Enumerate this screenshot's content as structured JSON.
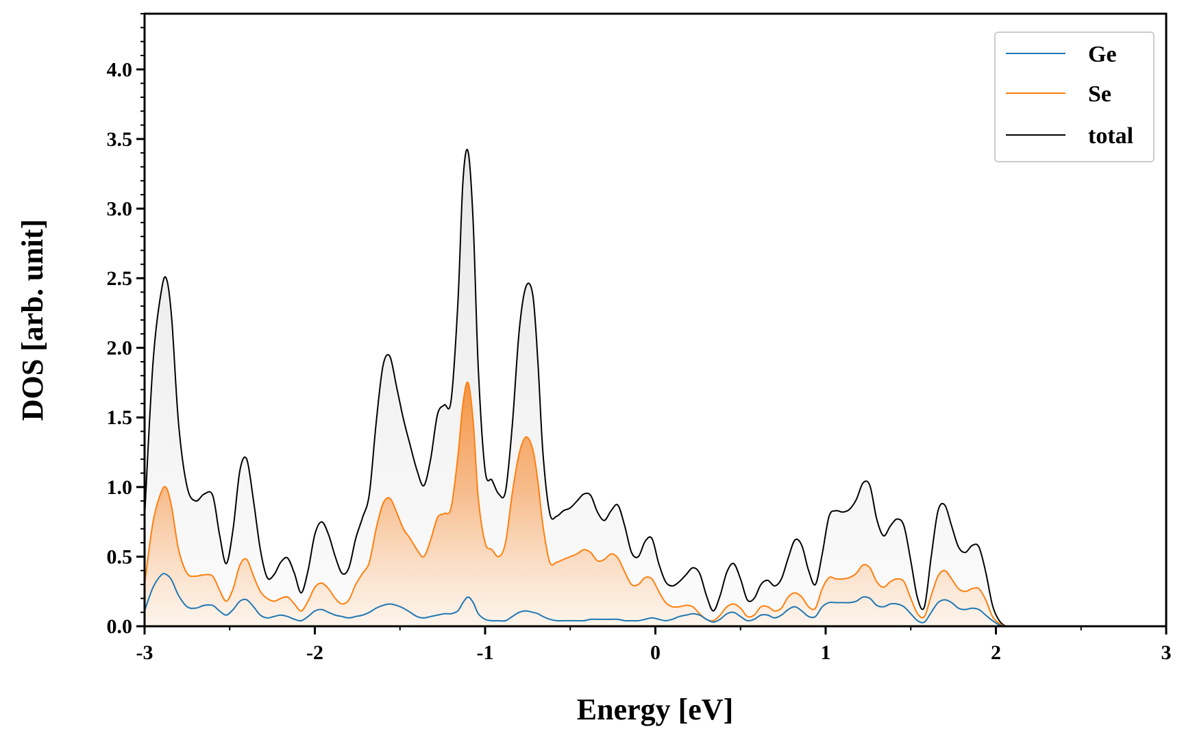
{
  "chart_data": {
    "type": "line",
    "title": "",
    "xlabel": "Energy [eV]",
    "ylabel": "DOS [arb. unit]",
    "xlim": [
      -3,
      3
    ],
    "ylim": [
      0,
      4.4
    ],
    "xticks": [
      -3,
      -2,
      -1,
      0,
      1,
      2,
      3
    ],
    "xtick_labels": [
      "-3",
      "-2",
      "-1",
      "0",
      "1",
      "2",
      "3"
    ],
    "yticks": [
      0,
      0.5,
      1.0,
      1.5,
      2.0,
      2.5,
      3.0,
      3.5,
      4.0
    ],
    "ytick_labels": [
      "0.0",
      "0.5",
      "1.0",
      "1.5",
      "2.0",
      "2.5",
      "3.0",
      "3.5",
      "4.0"
    ],
    "grid": false,
    "legend_position": "top-right",
    "x": [
      -3.0,
      -2.95,
      -2.9,
      -2.87,
      -2.84,
      -2.8,
      -2.75,
      -2.7,
      -2.65,
      -2.6,
      -2.56,
      -2.52,
      -2.48,
      -2.44,
      -2.4,
      -2.36,
      -2.32,
      -2.28,
      -2.24,
      -2.2,
      -2.16,
      -2.12,
      -2.08,
      -2.04,
      -2.0,
      -1.96,
      -1.92,
      -1.88,
      -1.84,
      -1.8,
      -1.76,
      -1.72,
      -1.68,
      -1.64,
      -1.6,
      -1.56,
      -1.52,
      -1.48,
      -1.44,
      -1.4,
      -1.36,
      -1.32,
      -1.28,
      -1.24,
      -1.2,
      -1.16,
      -1.13,
      -1.1,
      -1.07,
      -1.04,
      -1.0,
      -0.96,
      -0.92,
      -0.88,
      -0.84,
      -0.8,
      -0.76,
      -0.72,
      -0.69,
      -0.66,
      -0.62,
      -0.58,
      -0.54,
      -0.5,
      -0.46,
      -0.42,
      -0.38,
      -0.34,
      -0.3,
      -0.26,
      -0.22,
      -0.18,
      -0.14,
      -0.1,
      -0.06,
      -0.02,
      0.02,
      0.06,
      0.1,
      0.14,
      0.18,
      0.22,
      0.26,
      0.3,
      0.34,
      0.38,
      0.42,
      0.46,
      0.5,
      0.54,
      0.58,
      0.62,
      0.66,
      0.7,
      0.74,
      0.78,
      0.82,
      0.86,
      0.9,
      0.94,
      0.98,
      1.02,
      1.06,
      1.1,
      1.14,
      1.18,
      1.22,
      1.26,
      1.3,
      1.34,
      1.38,
      1.42,
      1.46,
      1.5,
      1.54,
      1.58,
      1.62,
      1.66,
      1.7,
      1.74,
      1.78,
      1.82,
      1.86,
      1.9,
      1.94,
      1.98,
      2.02,
      2.06,
      2.1,
      2.2,
      2.5,
      3.0
    ],
    "series": [
      {
        "name": "Ge",
        "color": "#1f77b4",
        "values": [
          0.11,
          0.28,
          0.37,
          0.37,
          0.33,
          0.22,
          0.14,
          0.13,
          0.15,
          0.15,
          0.11,
          0.08,
          0.12,
          0.18,
          0.19,
          0.14,
          0.08,
          0.06,
          0.07,
          0.08,
          0.07,
          0.05,
          0.04,
          0.07,
          0.11,
          0.12,
          0.1,
          0.08,
          0.07,
          0.06,
          0.07,
          0.08,
          0.1,
          0.13,
          0.15,
          0.16,
          0.15,
          0.13,
          0.1,
          0.07,
          0.06,
          0.07,
          0.08,
          0.09,
          0.09,
          0.11,
          0.17,
          0.21,
          0.17,
          0.09,
          0.05,
          0.04,
          0.04,
          0.04,
          0.07,
          0.1,
          0.11,
          0.1,
          0.09,
          0.07,
          0.05,
          0.04,
          0.04,
          0.04,
          0.04,
          0.04,
          0.05,
          0.05,
          0.05,
          0.05,
          0.05,
          0.04,
          0.04,
          0.04,
          0.05,
          0.06,
          0.05,
          0.04,
          0.05,
          0.07,
          0.08,
          0.09,
          0.08,
          0.05,
          0.03,
          0.05,
          0.09,
          0.1,
          0.07,
          0.04,
          0.05,
          0.08,
          0.08,
          0.06,
          0.08,
          0.12,
          0.14,
          0.11,
          0.07,
          0.07,
          0.14,
          0.17,
          0.17,
          0.17,
          0.17,
          0.18,
          0.21,
          0.2,
          0.15,
          0.14,
          0.16,
          0.16,
          0.14,
          0.09,
          0.04,
          0.03,
          0.1,
          0.17,
          0.19,
          0.17,
          0.13,
          0.12,
          0.13,
          0.12,
          0.08,
          0.04,
          0.01,
          0.0,
          0.0,
          0.0,
          0.0,
          0.0
        ]
      },
      {
        "name": "Se",
        "color": "#ff7f0e",
        "values": [
          0.3,
          0.75,
          0.97,
          0.99,
          0.85,
          0.55,
          0.38,
          0.36,
          0.37,
          0.36,
          0.26,
          0.18,
          0.27,
          0.44,
          0.48,
          0.36,
          0.25,
          0.2,
          0.18,
          0.2,
          0.21,
          0.16,
          0.11,
          0.18,
          0.28,
          0.31,
          0.27,
          0.2,
          0.16,
          0.19,
          0.3,
          0.38,
          0.46,
          0.7,
          0.88,
          0.92,
          0.82,
          0.7,
          0.63,
          0.55,
          0.5,
          0.62,
          0.78,
          0.81,
          0.85,
          1.22,
          1.6,
          1.75,
          1.47,
          0.92,
          0.6,
          0.55,
          0.5,
          0.6,
          0.96,
          1.24,
          1.36,
          1.27,
          1.04,
          0.72,
          0.46,
          0.46,
          0.48,
          0.5,
          0.52,
          0.55,
          0.53,
          0.47,
          0.48,
          0.52,
          0.49,
          0.39,
          0.3,
          0.3,
          0.35,
          0.34,
          0.25,
          0.17,
          0.14,
          0.14,
          0.15,
          0.14,
          0.09,
          0.05,
          0.04,
          0.08,
          0.14,
          0.16,
          0.13,
          0.07,
          0.08,
          0.14,
          0.14,
          0.11,
          0.13,
          0.21,
          0.24,
          0.21,
          0.14,
          0.13,
          0.27,
          0.35,
          0.34,
          0.34,
          0.35,
          0.38,
          0.44,
          0.42,
          0.32,
          0.28,
          0.32,
          0.34,
          0.32,
          0.2,
          0.09,
          0.07,
          0.22,
          0.36,
          0.4,
          0.34,
          0.27,
          0.25,
          0.27,
          0.27,
          0.19,
          0.07,
          0.02,
          0.0,
          0.0,
          0.0,
          0.0,
          0.0
        ]
      },
      {
        "name": "total",
        "color": "#000000",
        "values": [
          0.78,
          1.9,
          2.42,
          2.49,
          2.2,
          1.45,
          1.0,
          0.9,
          0.95,
          0.94,
          0.66,
          0.45,
          0.7,
          1.12,
          1.2,
          0.9,
          0.55,
          0.35,
          0.37,
          0.46,
          0.49,
          0.38,
          0.24,
          0.4,
          0.66,
          0.75,
          0.66,
          0.5,
          0.38,
          0.42,
          0.63,
          0.78,
          0.95,
          1.46,
          1.87,
          1.94,
          1.72,
          1.49,
          1.3,
          1.12,
          1.01,
          1.2,
          1.52,
          1.59,
          1.62,
          2.32,
          3.2,
          3.41,
          2.9,
          1.85,
          1.12,
          1.05,
          0.95,
          0.97,
          1.45,
          2.12,
          2.44,
          2.38,
          1.9,
          1.24,
          0.81,
          0.79,
          0.83,
          0.85,
          0.9,
          0.95,
          0.94,
          0.82,
          0.76,
          0.83,
          0.87,
          0.72,
          0.53,
          0.5,
          0.61,
          0.63,
          0.45,
          0.32,
          0.29,
          0.32,
          0.37,
          0.42,
          0.38,
          0.22,
          0.11,
          0.22,
          0.39,
          0.45,
          0.34,
          0.19,
          0.2,
          0.3,
          0.33,
          0.29,
          0.34,
          0.49,
          0.62,
          0.58,
          0.4,
          0.3,
          0.52,
          0.79,
          0.83,
          0.82,
          0.84,
          0.91,
          1.03,
          1.01,
          0.77,
          0.65,
          0.72,
          0.77,
          0.72,
          0.47,
          0.2,
          0.14,
          0.5,
          0.83,
          0.87,
          0.72,
          0.57,
          0.53,
          0.58,
          0.57,
          0.39,
          0.15,
          0.04,
          0.0,
          0.0,
          0.0,
          0.0,
          0.0
        ]
      }
    ]
  }
}
